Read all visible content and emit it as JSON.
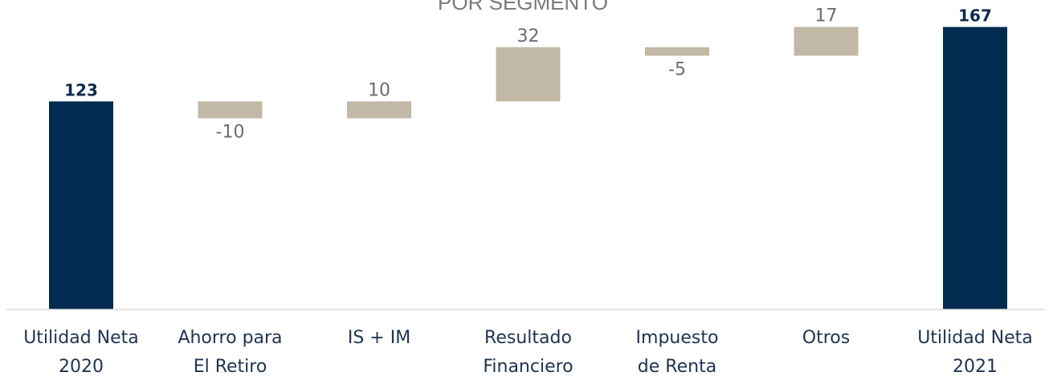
{
  "chart_data": {
    "type": "bar",
    "subtype": "waterfall",
    "title": "POR SEGMENTO",
    "categories": [
      [
        "Utilidad Neta",
        "2020"
      ],
      [
        "Ahorro para",
        "El Retiro"
      ],
      [
        "IS + IM"
      ],
      [
        "Resultado",
        "Financiero"
      ],
      [
        "Impuesto",
        "de Renta"
      ],
      [
        "Otros"
      ],
      [
        "Utilidad Neta",
        "2021"
      ]
    ],
    "values": [
      123,
      -10,
      10,
      32,
      -5,
      17,
      167
    ],
    "value_labels": [
      "123",
      "-10",
      "10",
      "32",
      "-5",
      "17",
      "167"
    ],
    "kinds": [
      "total",
      "delta",
      "delta",
      "delta",
      "delta",
      "delta",
      "total"
    ],
    "ylim": [
      0,
      170
    ],
    "grid": false,
    "legend": "none",
    "colors": {
      "total": "#022c4f",
      "delta": "#c1b8a5",
      "axis": "#d9d9d9"
    }
  }
}
